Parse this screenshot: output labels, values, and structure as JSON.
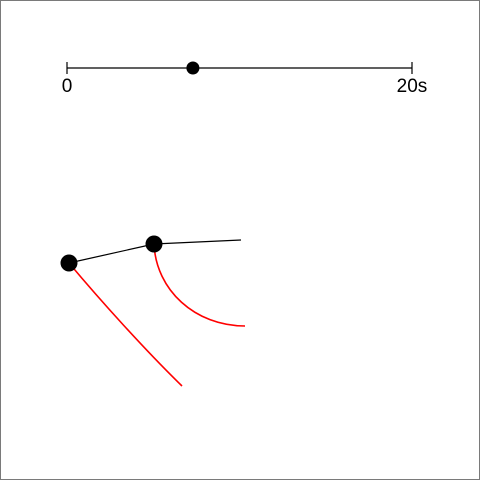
{
  "timeline": {
    "start_label": "0",
    "end_label": "20s",
    "duration_s": 20,
    "current_time_s": 7.3,
    "line_color": "#000000",
    "handle_color": "#000000"
  },
  "pendulum": {
    "arm_color": "#000000",
    "trail_color": "#ff0000",
    "bob_color": "#000000"
  }
}
